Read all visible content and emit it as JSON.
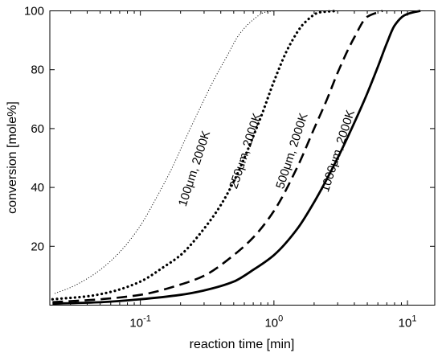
{
  "chart_data": {
    "type": "line",
    "title": "",
    "xlabel": "reaction time [min]",
    "ylabel": "conversion [mole%]",
    "xscale": "log",
    "xlim": [
      0.021,
      16
    ],
    "ylim": [
      0,
      100
    ],
    "grid": false,
    "legend": "none",
    "xticks": [
      {
        "value": 0.1,
        "base": "10",
        "exp": "-1"
      },
      {
        "value": 1,
        "base": "10",
        "exp": "0"
      },
      {
        "value": 10,
        "base": "10",
        "exp": "1"
      }
    ],
    "yticks": [
      20,
      40,
      60,
      80,
      100
    ],
    "series": [
      {
        "label": "100μm, 2000K",
        "style": "fine-dotted",
        "x": [
          0.023,
          0.03,
          0.04,
          0.05,
          0.07,
          0.1,
          0.13,
          0.17,
          0.22,
          0.28,
          0.35,
          0.45,
          0.55,
          0.7,
          0.85,
          1.0
        ],
        "y": [
          4,
          6,
          9,
          12,
          18,
          27,
          36,
          46,
          57,
          67,
          76,
          85,
          92,
          97,
          99.5,
          100
        ]
      },
      {
        "label": "250μm, 2000K",
        "style": "dotted",
        "x": [
          0.022,
          0.04,
          0.06,
          0.1,
          0.15,
          0.2,
          0.3,
          0.4,
          0.5,
          0.6,
          0.8,
          1.0,
          1.3,
          1.7,
          2.2,
          3.0
        ],
        "y": [
          2,
          3,
          4.5,
          8,
          13,
          17,
          26,
          34,
          42,
          50,
          64,
          76,
          88,
          96,
          99.5,
          100
        ]
      },
      {
        "label": "500μm, 2000K",
        "style": "dashed",
        "x": [
          0.022,
          0.05,
          0.1,
          0.2,
          0.3,
          0.5,
          0.7,
          1.0,
          1.5,
          2.0,
          2.5,
          3.0,
          4.0,
          5.0,
          6.5
        ],
        "y": [
          1,
          2,
          3.5,
          7,
          10,
          17,
          23,
          32,
          47,
          60,
          70,
          79,
          91,
          98,
          100
        ]
      },
      {
        "label": "1000μm, 2000K",
        "style": "solid",
        "x": [
          0.022,
          0.05,
          0.1,
          0.2,
          0.3,
          0.5,
          0.7,
          1.0,
          1.5,
          2.0,
          3.0,
          4.0,
          5.0,
          6.0,
          7.0,
          8.0,
          9.5,
          11.0,
          12.5
        ],
        "y": [
          0.5,
          1,
          2,
          3.5,
          5,
          8,
          12,
          17,
          26,
          35,
          50,
          62,
          72,
          81,
          89,
          95,
          98.5,
          99.5,
          100
        ]
      }
    ]
  }
}
